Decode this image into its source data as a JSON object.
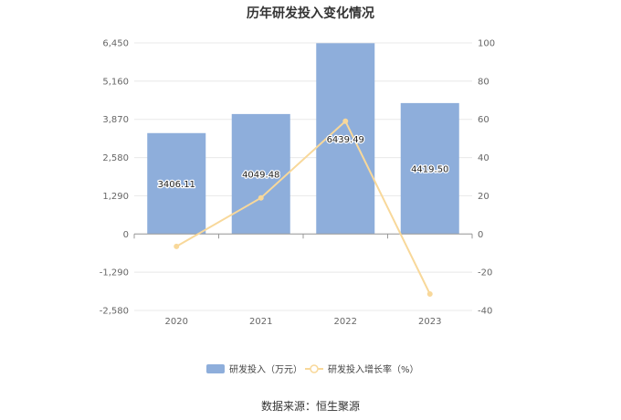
{
  "chart_data": {
    "type": "bar",
    "title": "历年研发投入变化情况",
    "categories": [
      "2020",
      "2021",
      "2022",
      "2023"
    ],
    "series": [
      {
        "name": "研发投入（万元）",
        "type": "bar",
        "axis": "left",
        "values": [
          3406.11,
          4049.48,
          6439.49,
          4419.5
        ],
        "labels": [
          "3406.11",
          "4049.48",
          "6439.49",
          "4419.50"
        ]
      },
      {
        "name": "研发投入增长率（%）",
        "type": "line",
        "axis": "right",
        "values": [
          -6.5,
          18.9,
          59.0,
          -31.4
        ]
      }
    ],
    "y_left": {
      "ylim": [
        -2580,
        6450
      ],
      "ticks": [
        -2580,
        -1290,
        0,
        1290,
        2580,
        3870,
        5160,
        6450
      ],
      "tick_labels": [
        "-2,580",
        "-1,290",
        "0",
        "1,290",
        "2,580",
        "3,870",
        "5,160",
        "6,450"
      ]
    },
    "y_right": {
      "ylim": [
        -40,
        100
      ],
      "ticks": [
        -40,
        -20,
        0,
        20,
        40,
        60,
        80,
        100
      ],
      "tick_labels": [
        "-40",
        "-20",
        "0",
        "20",
        "40",
        "60",
        "80",
        "100"
      ]
    },
    "grid": true,
    "legend_position": "bottom",
    "colors": {
      "bar": "#8eaedb",
      "line": "#f8d89a",
      "grid": "#e8e8e8",
      "axis": "#999999"
    }
  },
  "footer": {
    "source": "数据来源：恒生聚源"
  }
}
